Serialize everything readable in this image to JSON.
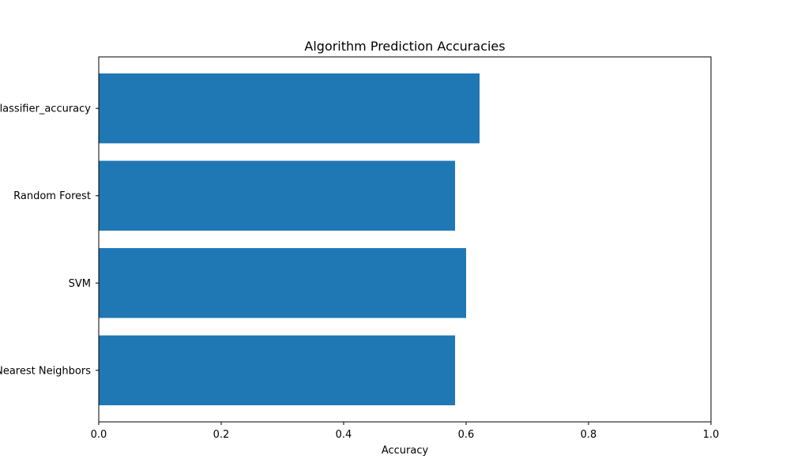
{
  "chart_data": {
    "type": "bar",
    "orientation": "horizontal",
    "title": "Algorithm Prediction Accuracies",
    "xlabel": "Accuracy",
    "ylabel": "",
    "categories": [
      "K-Nearest Neighbors",
      "SVM",
      "Random Forest",
      "classifier_accuracy"
    ],
    "values": [
      0.582,
      0.6,
      0.582,
      0.622
    ],
    "xlim": [
      0,
      1
    ],
    "xticks": [
      0.0,
      0.2,
      0.4,
      0.6,
      0.8,
      1.0
    ],
    "xtick_labels": [
      "0.0",
      "0.2",
      "0.4",
      "0.6",
      "0.8",
      "1.0"
    ],
    "bar_color": "#1f77b4",
    "grid": false,
    "legend": "none"
  }
}
